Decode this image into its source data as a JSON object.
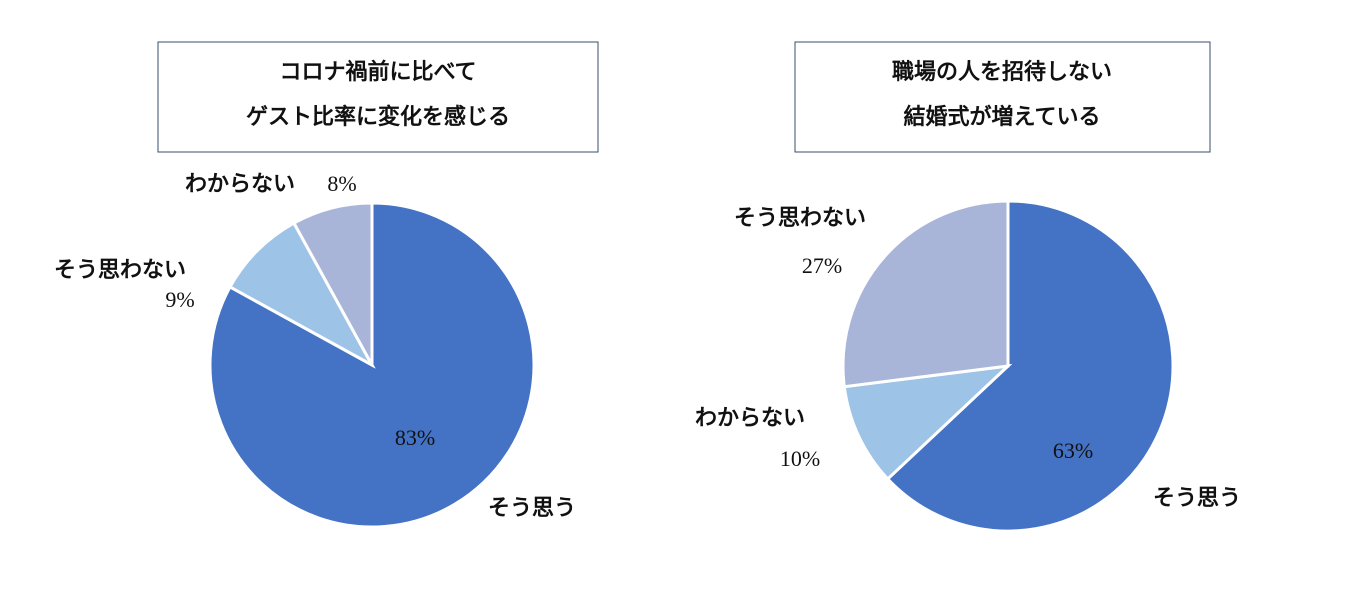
{
  "chart_data": [
    {
      "type": "pie",
      "title": [
        "コロナ禍前に比べて",
        "ゲスト比率に変化を感じる"
      ],
      "categories": [
        "そう思う",
        "そう思わない",
        "わからない"
      ],
      "values": [
        83,
        9,
        8
      ],
      "value_labels": [
        "83%",
        "9%",
        "8%"
      ],
      "colors": [
        "#4472c4",
        "#9dc3e6",
        "#a9b4d9"
      ]
    },
    {
      "type": "pie",
      "title": [
        "職場の人を招待しない",
        "結婚式が増えている"
      ],
      "categories": [
        "そう思う",
        "わからない",
        "そう思わない"
      ],
      "values": [
        63,
        10,
        27
      ],
      "value_labels": [
        "63%",
        "10%",
        "27%"
      ],
      "colors": [
        "#4472c4",
        "#9dc3e6",
        "#a9b4d9"
      ]
    }
  ]
}
